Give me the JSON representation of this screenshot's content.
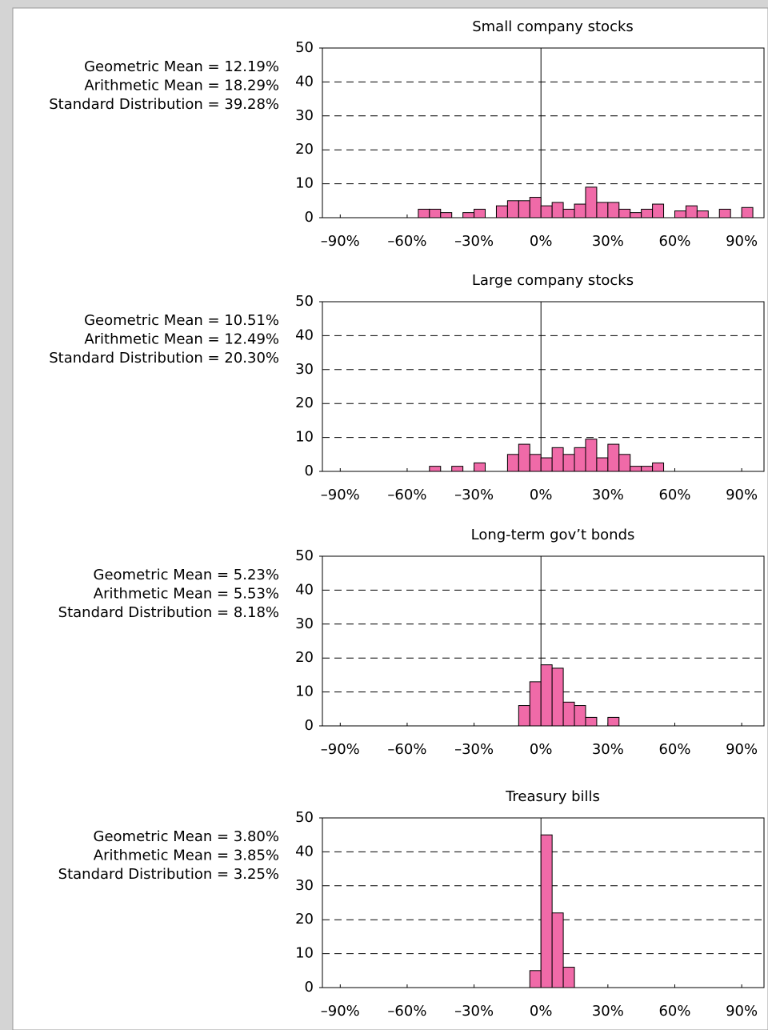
{
  "chart_data": [
    {
      "type": "histogram",
      "title": "Small company stocks",
      "stats": [
        "Geometric Mean = 12.19%",
        "Arithmetic Mean = 18.29%",
        "Standard Distribution = 39.28%"
      ],
      "bins": [
        -55,
        -50,
        -45,
        -40,
        -35,
        -30,
        -25,
        -20,
        -15,
        -10,
        -5,
        0,
        5,
        10,
        15,
        20,
        25,
        30,
        35,
        40,
        45,
        50,
        55,
        60,
        65,
        70,
        75,
        80,
        85,
        90,
        95
      ],
      "values": [
        2.5,
        2.5,
        1.5,
        0,
        1.5,
        2.5,
        0,
        3.5,
        5,
        5,
        6,
        3.5,
        4.5,
        2.5,
        4,
        9,
        4.5,
        4.5,
        2.5,
        1.5,
        2.5,
        4,
        0,
        2,
        3.5,
        2,
        0,
        2.5,
        0,
        3
      ],
      "color": "#f06aa8",
      "xlim": [
        -98,
        100
      ],
      "ylim": [
        0,
        50
      ],
      "yticks": [
        0,
        10,
        20,
        30,
        40,
        50
      ],
      "xticks": [
        {
          "value": -90,
          "label": "–90%"
        },
        {
          "value": -60,
          "label": "–60%"
        },
        {
          "value": -30,
          "label": "–30%"
        },
        {
          "value": 0,
          "label": "0%"
        },
        {
          "value": 30,
          "label": "30%"
        },
        {
          "value": 60,
          "label": "60%"
        },
        {
          "value": 90,
          "label": "90%"
        }
      ],
      "grid": true
    },
    {
      "type": "histogram",
      "title": "Large company stocks",
      "stats": [
        "Geometric Mean = 10.51%",
        "Arithmetic Mean = 12.49%",
        "Standard Distribution = 20.30%"
      ],
      "bins": [
        -50,
        -45,
        -40,
        -35,
        -30,
        -25,
        -20,
        -15,
        -10,
        -5,
        0,
        5,
        10,
        15,
        20,
        25,
        30,
        35,
        40,
        45,
        50,
        55
      ],
      "values": [
        1.5,
        0,
        1.5,
        0,
        2.5,
        0,
        0,
        5,
        8,
        5,
        4,
        7,
        5,
        7,
        9.5,
        4,
        8,
        5,
        1.5,
        1.5,
        2.5
      ],
      "color": "#f06aa8",
      "xlim": [
        -98,
        100
      ],
      "ylim": [
        0,
        50
      ],
      "yticks": [
        0,
        10,
        20,
        30,
        40,
        50
      ],
      "xticks": [
        {
          "value": -90,
          "label": "–90%"
        },
        {
          "value": -60,
          "label": "–60%"
        },
        {
          "value": -30,
          "label": "–30%"
        },
        {
          "value": 0,
          "label": "0%"
        },
        {
          "value": 30,
          "label": "30%"
        },
        {
          "value": 60,
          "label": "60%"
        },
        {
          "value": 90,
          "label": "90%"
        }
      ],
      "grid": true
    },
    {
      "type": "histogram",
      "title": "Long-term gov’t bonds",
      "stats": [
        "Geometric Mean = 5.23%",
        "Arithmetic Mean = 5.53%",
        "Standard Distribution = 8.18%"
      ],
      "bins": [
        -10,
        -5,
        0,
        5,
        10,
        15,
        20,
        25,
        30,
        35
      ],
      "values": [
        6,
        13,
        18,
        17,
        7,
        6,
        2.5,
        0,
        2.5
      ],
      "color": "#f06aa8",
      "xlim": [
        -98,
        100
      ],
      "ylim": [
        0,
        50
      ],
      "yticks": [
        0,
        10,
        20,
        30,
        40,
        50
      ],
      "xticks": [
        {
          "value": -90,
          "label": "–90%"
        },
        {
          "value": -60,
          "label": "–60%"
        },
        {
          "value": -30,
          "label": "–30%"
        },
        {
          "value": 0,
          "label": "0%"
        },
        {
          "value": 30,
          "label": "30%"
        },
        {
          "value": 60,
          "label": "60%"
        },
        {
          "value": 90,
          "label": "90%"
        }
      ],
      "grid": true
    },
    {
      "type": "histogram",
      "title": "Treasury bills",
      "stats": [
        "Geometric Mean = 3.80%",
        "Arithmetic Mean = 3.85%",
        "Standard Distribution = 3.25%"
      ],
      "bins": [
        -5,
        0,
        5,
        10,
        15
      ],
      "values": [
        5,
        45,
        22,
        6
      ],
      "color": "#f06aa8",
      "xlim": [
        -98,
        100
      ],
      "ylim": [
        0,
        50
      ],
      "yticks": [
        0,
        10,
        20,
        30,
        40,
        50
      ],
      "xticks": [
        {
          "value": -90,
          "label": "–90%"
        },
        {
          "value": -60,
          "label": "–60%"
        },
        {
          "value": -30,
          "label": "–30%"
        },
        {
          "value": 0,
          "label": "0%"
        },
        {
          "value": 30,
          "label": "30%"
        },
        {
          "value": 60,
          "label": "60%"
        },
        {
          "value": 90,
          "label": "90%"
        }
      ],
      "grid": true
    }
  ]
}
